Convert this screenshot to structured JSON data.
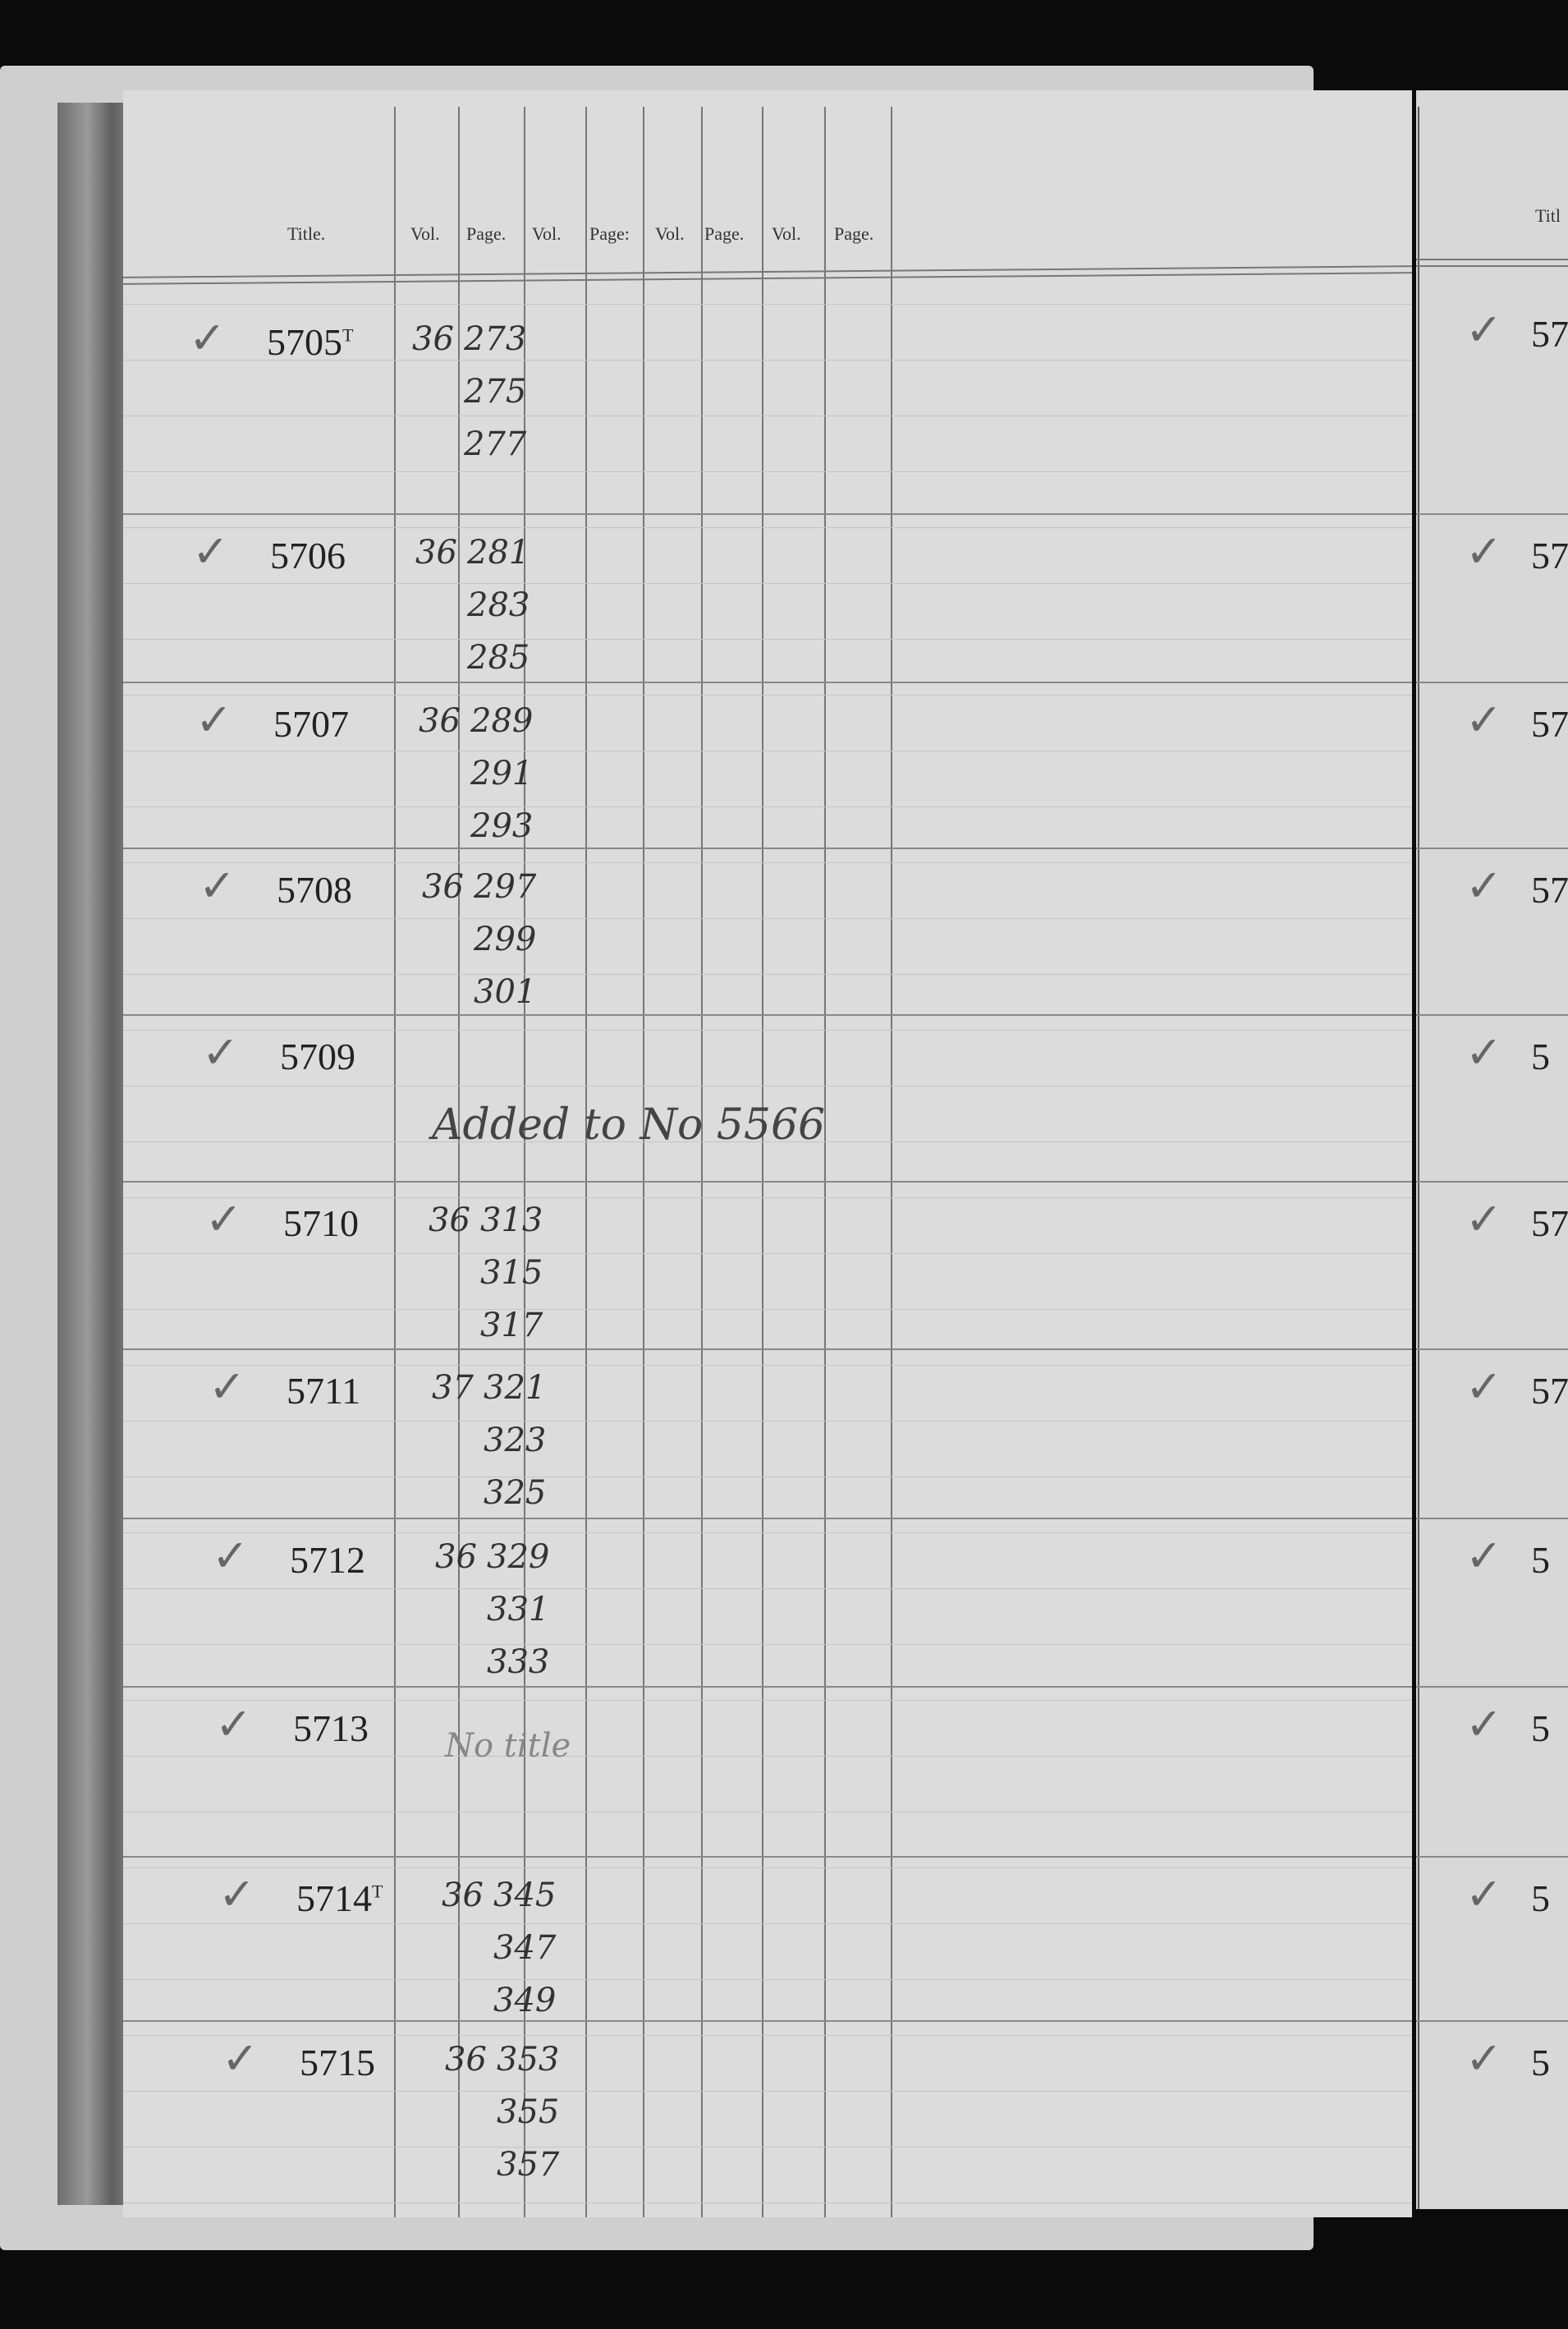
{
  "header": {
    "title": "Title.",
    "columns": [
      "Vol.",
      "Page.",
      "Vol.",
      "Page:",
      "Vol.",
      "Page.",
      "Vol.",
      "Page."
    ]
  },
  "entries": [
    {
      "title": "5705",
      "mark": "T",
      "checked": true,
      "vol": "36",
      "pages": [
        "273",
        "275",
        "277"
      ]
    },
    {
      "title": "5706",
      "checked": true,
      "vol": "36",
      "pages": [
        "281",
        "283",
        "285"
      ]
    },
    {
      "title": "5707",
      "checked": true,
      "vol": "36",
      "pages": [
        "289",
        "291",
        "293"
      ]
    },
    {
      "title": "5708",
      "checked": true,
      "vol": "36",
      "pages": [
        "297",
        "299",
        "301"
      ]
    },
    {
      "title": "5709",
      "checked": true,
      "note": "Added to No 5566",
      "pages": []
    },
    {
      "title": "5710",
      "checked": true,
      "vol": "36",
      "pages": [
        "313",
        "315",
        "317"
      ]
    },
    {
      "title": "5711",
      "checked": true,
      "vol": "37",
      "pages": [
        "321",
        "323",
        "325"
      ]
    },
    {
      "title": "5712",
      "checked": true,
      "vol": "36",
      "pages": [
        "329",
        "331",
        "333"
      ]
    },
    {
      "title": "5713",
      "checked": false,
      "note": "No title",
      "pages": []
    },
    {
      "title": "5714",
      "mark": "T",
      "checked": true,
      "vol": "36",
      "pages": [
        "345",
        "347",
        "349"
      ]
    },
    {
      "title": "5715",
      "checked": true,
      "vol": "36",
      "pages": [
        "353",
        "355",
        "357"
      ]
    }
  ],
  "right_page": {
    "header": "Titl",
    "fragments": [
      "57",
      "57",
      "57",
      "57",
      "5",
      "57",
      "57",
      "5",
      "5",
      "5",
      "5"
    ]
  },
  "icons": {
    "check": "check-mark-icon"
  }
}
